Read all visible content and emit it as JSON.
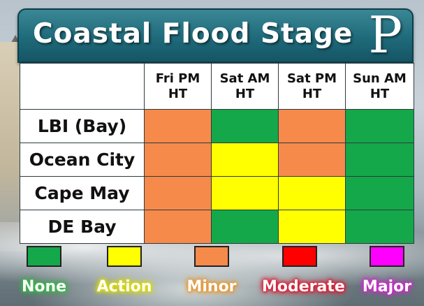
{
  "header": {
    "title": "Coastal Flood Stage",
    "logo_letter": "P"
  },
  "table": {
    "columns": [
      {
        "line1": "Fri PM",
        "line2": "HT"
      },
      {
        "line1": "Sat AM",
        "line2": "HT"
      },
      {
        "line1": "Sat PM",
        "line2": "HT"
      },
      {
        "line1": "Sun AM",
        "line2": "HT"
      }
    ],
    "rows": [
      {
        "location": "LBI (Bay)",
        "stages": [
          "minor",
          "none",
          "minor",
          "none"
        ]
      },
      {
        "location": "Ocean City",
        "stages": [
          "minor",
          "action",
          "minor",
          "none"
        ]
      },
      {
        "location": "Cape May",
        "stages": [
          "minor",
          "action",
          "action",
          "none"
        ]
      },
      {
        "location": "DE Bay",
        "stages": [
          "minor",
          "none",
          "action",
          "none"
        ]
      }
    ]
  },
  "legend": [
    {
      "key": "none",
      "label": "None",
      "color": "#14a84a",
      "glow": "#3fb24f"
    },
    {
      "key": "action",
      "label": "Action",
      "color": "#ffff00",
      "glow": "#d8d810"
    },
    {
      "key": "minor",
      "label": "Minor",
      "color": "#f58a4b",
      "glow": "#e39a3d"
    },
    {
      "key": "moderate",
      "label": "Moderate",
      "color": "#ff0000",
      "glow": "#d8233a"
    },
    {
      "key": "major",
      "label": "Major",
      "color": "#ff00ff",
      "glow": "#c434c4"
    }
  ]
}
